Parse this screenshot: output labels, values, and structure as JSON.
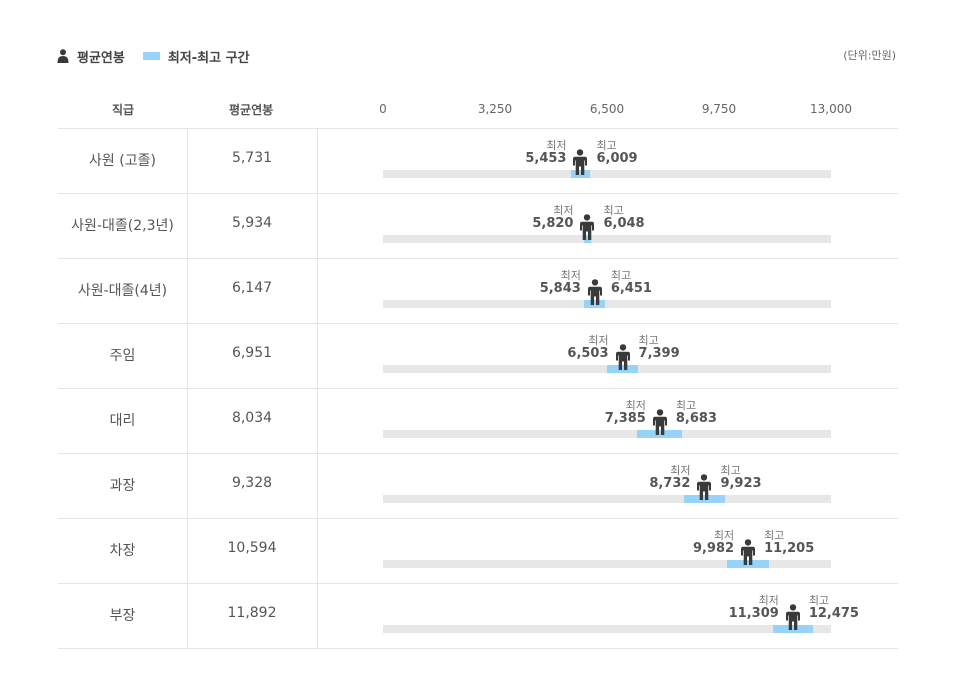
{
  "legend": {
    "avg_label": "평균연봉",
    "range_label": "최저-최고 구간"
  },
  "unit_label": "(단위:만원)",
  "headers": {
    "rank": "직급",
    "avg": "평균연봉"
  },
  "colors": {
    "range": "#97d3f8",
    "track": "#e7e7e7",
    "figure": "#3a3a3a"
  },
  "chart_data": {
    "type": "range-dot",
    "title": "",
    "xlim": [
      0,
      13000
    ],
    "ticks": [
      0,
      3250,
      6500,
      9750,
      13000
    ],
    "tick_labels": [
      "0",
      "3,250",
      "6,500",
      "9,750",
      "13,000"
    ],
    "min_label": "최저",
    "max_label": "최고",
    "rows": [
      {
        "rank": "사원 (고졸)",
        "avg": 5731,
        "avg_label": "5,731",
        "min": 5453,
        "min_label": "5,453",
        "max": 6009,
        "max_label": "6,009"
      },
      {
        "rank": "사원-대졸(2,3년)",
        "avg": 5934,
        "avg_label": "5,934",
        "min": 5820,
        "min_label": "5,820",
        "max": 6048,
        "max_label": "6,048"
      },
      {
        "rank": "사원-대졸(4년)",
        "avg": 6147,
        "avg_label": "6,147",
        "min": 5843,
        "min_label": "5,843",
        "max": 6451,
        "max_label": "6,451"
      },
      {
        "rank": "주임",
        "avg": 6951,
        "avg_label": "6,951",
        "min": 6503,
        "min_label": "6,503",
        "max": 7399,
        "max_label": "7,399"
      },
      {
        "rank": "대리",
        "avg": 8034,
        "avg_label": "8,034",
        "min": 7385,
        "min_label": "7,385",
        "max": 8683,
        "max_label": "8,683"
      },
      {
        "rank": "과장",
        "avg": 9328,
        "avg_label": "9,328",
        "min": 8732,
        "min_label": "8,732",
        "max": 9923,
        "max_label": "9,923"
      },
      {
        "rank": "차장",
        "avg": 10594,
        "avg_label": "10,594",
        "min": 9982,
        "min_label": "9,982",
        "max": 11205,
        "max_label": "11,205"
      },
      {
        "rank": "부장",
        "avg": 11892,
        "avg_label": "11,892",
        "min": 11309,
        "min_label": "11,309",
        "max": 12475,
        "max_label": "12,475"
      }
    ]
  }
}
